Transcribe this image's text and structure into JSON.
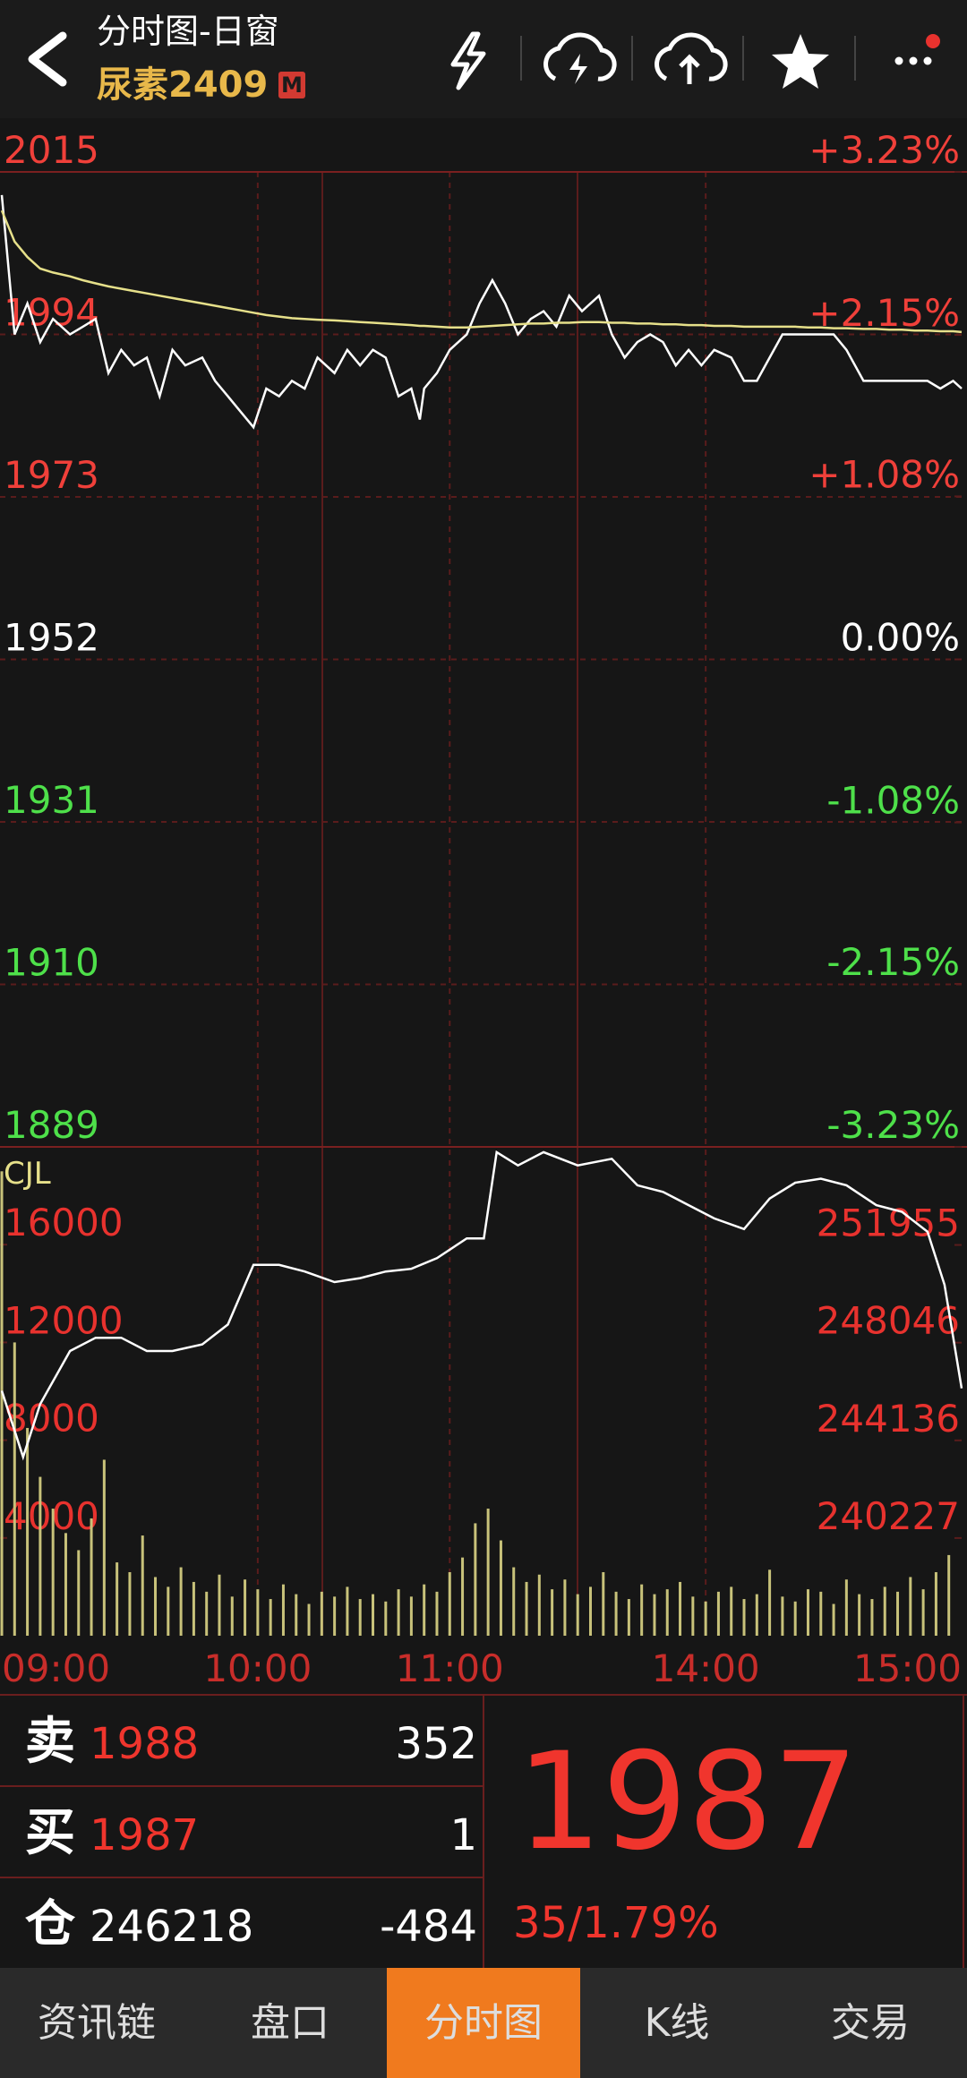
{
  "header": {
    "title": "分时图-日窗",
    "contract": "尿素2409",
    "badge": "M"
  },
  "chart_data": [
    {
      "type": "line",
      "up_color": "#f0403a",
      "flat_color": "#ffffff",
      "down_color": "#4ee04a",
      "grid": true,
      "x": [
        0,
        3,
        6,
        9,
        12,
        16,
        19,
        22,
        25,
        28,
        31,
        34,
        37,
        40,
        43,
        47,
        50,
        53,
        56,
        59,
        62,
        65,
        68,
        71,
        74,
        78,
        81,
        84,
        87,
        90,
        93,
        96,
        98,
        99,
        102,
        105,
        109,
        112,
        115,
        118,
        121,
        124,
        127,
        130,
        133,
        136,
        140,
        143,
        146,
        149,
        152,
        155,
        158,
        161,
        164,
        167,
        171,
        174,
        177,
        180,
        183,
        186,
        189,
        192,
        195,
        198,
        202,
        205,
        208,
        211,
        214,
        217,
        220,
        223,
        225
      ],
      "series": [
        {
          "color": "#ffffff",
          "values": [
            2012,
            1994,
            1998,
            1993,
            1996,
            1994,
            1995,
            1996,
            1989,
            1992,
            1990,
            1991,
            1986,
            1992,
            1990,
            1991,
            1988,
            1986,
            1984,
            1982,
            1987,
            1986,
            1988,
            1987,
            1991,
            1989,
            1992,
            1990,
            1992,
            1991,
            1986,
            1987,
            1983,
            1987,
            1989,
            1992,
            1994,
            1998,
            2001,
            1998,
            1994,
            1996,
            1997,
            1995,
            1999,
            1997,
            1999,
            1994,
            1991,
            1993,
            1994,
            1993,
            1990,
            1992,
            1990,
            1992,
            1991,
            1988,
            1988,
            1991,
            1994,
            1994,
            1994,
            1994,
            1994,
            1992,
            1988,
            1988,
            1988,
            1988,
            1988,
            1988,
            1987,
            1988,
            1987
          ]
        },
        {
          "color": "#e6e08a",
          "values": [
            2010,
            2006,
            2004,
            2002.5,
            2002,
            2001.5,
            2001,
            2000.6,
            2000.2,
            1999.9,
            1999.6,
            1999.3,
            1999,
            1998.7,
            1998.4,
            1998,
            1997.7,
            1997.4,
            1997.1,
            1996.8,
            1996.5,
            1996.3,
            1996.1,
            1996,
            1995.9,
            1995.8,
            1995.7,
            1995.6,
            1995.5,
            1995.4,
            1995.3,
            1995.2,
            1995.1,
            1995.1,
            1995,
            1994.9,
            1994.9,
            1995,
            1995.1,
            1995.2,
            1995.3,
            1995.4,
            1995.4,
            1995.5,
            1995.5,
            1995.6,
            1995.6,
            1995.5,
            1995.5,
            1995.4,
            1995.4,
            1995.3,
            1995.3,
            1995.2,
            1995.2,
            1995.1,
            1995.1,
            1995,
            1995,
            1995,
            1995,
            1995,
            1994.9,
            1994.9,
            1994.8,
            1994.8,
            1994.7,
            1994.7,
            1994.6,
            1994.6,
            1994.5,
            1994.5,
            1994.4,
            1994.4,
            1994.3
          ]
        }
      ],
      "ylim": [
        1889,
        2015
      ],
      "yticks": [
        2015,
        1994,
        1973,
        1952,
        1931,
        1910,
        1889
      ],
      "y2lim": [
        -3.23,
        3.23
      ],
      "y2ticks": [
        {
          "value": 3.23,
          "label": "+3.23%"
        },
        {
          "value": 2.15,
          "label": "+2.15%"
        },
        {
          "value": 1.08,
          "label": "+1.08%"
        },
        {
          "value": 0,
          "label": "0.00%"
        },
        {
          "value": -1.08,
          "label": "-1.08%"
        },
        {
          "value": -2.15,
          "label": "-2.15%"
        },
        {
          "value": -3.23,
          "label": "-3.23%"
        }
      ]
    },
    {
      "type": "bar",
      "title": "CJL",
      "title_color": "#e6e08a",
      "tick_color": "#e8322e",
      "x": [
        0,
        3,
        6,
        9,
        12,
        15,
        18,
        21,
        24,
        27,
        30,
        33,
        36,
        39,
        42,
        45,
        48,
        51,
        54,
        57,
        60,
        63,
        66,
        69,
        72,
        75,
        78,
        81,
        84,
        87,
        90,
        93,
        96,
        99,
        102,
        105,
        108,
        111,
        114,
        117,
        120,
        123,
        126,
        129,
        132,
        135,
        138,
        141,
        144,
        147,
        150,
        153,
        156,
        159,
        162,
        165,
        168,
        171,
        174,
        177,
        180,
        183,
        186,
        189,
        192,
        195,
        198,
        201,
        204,
        207,
        210,
        213,
        216,
        219,
        222
      ],
      "xlim": [
        0,
        225
      ],
      "xticks": [
        {
          "value": 0,
          "label": "09:00"
        },
        {
          "value": 60,
          "label": "10:00"
        },
        {
          "value": 105,
          "label": "11:00"
        },
        {
          "value": 165,
          "label": "14:00"
        },
        {
          "value": 225,
          "label": "15:00"
        }
      ],
      "series": [
        {
          "color": "#c8c27a",
          "values": [
            19000,
            12000,
            8500,
            6500,
            5200,
            4200,
            3500,
            4800,
            7200,
            3000,
            2600,
            4100,
            2400,
            2000,
            2800,
            2200,
            1800,
            2500,
            1600,
            2300,
            1900,
            1500,
            2100,
            1700,
            1300,
            1800,
            1600,
            2000,
            1500,
            1700,
            1400,
            1900,
            1600,
            2100,
            1800,
            2600,
            3200,
            4600,
            5200,
            3900,
            2800,
            2200,
            2500,
            1900,
            2300,
            1700,
            2000,
            2600,
            1800,
            1500,
            2100,
            1700,
            1900,
            2200,
            1600,
            1400,
            1800,
            2000,
            1500,
            1700,
            2700,
            1600,
            1400,
            1900,
            1800,
            1300,
            2300,
            1700,
            1500,
            2000,
            1800,
            2400,
            1900,
            2600,
            3300
          ]
        },
        {
          "color": "#ffffff",
          "axis": "y2",
          "x": [
            0,
            5,
            9,
            16,
            22,
            28,
            34,
            40,
            47,
            53,
            59,
            65,
            71,
            78,
            84,
            90,
            96,
            102,
            109,
            113,
            116,
            121,
            127,
            135,
            143,
            149,
            155,
            161,
            167,
            174,
            180,
            186,
            192,
            198,
            205,
            211,
            217,
            221,
            225
          ],
          "values": [
            246121,
            243469,
            245590,
            247712,
            248242,
            248242,
            247712,
            247712,
            247977,
            248773,
            251159,
            251159,
            250894,
            250470,
            250629,
            250894,
            251000,
            251425,
            252220,
            252220,
            255668,
            255137,
            255668,
            255137,
            255403,
            254342,
            254077,
            253546,
            253016,
            252591,
            253811,
            254448,
            254607,
            254342,
            253546,
            253281,
            252485,
            250364,
            246218
          ]
        }
      ],
      "ylim": [
        0,
        20000
      ],
      "yticks": [
        4000,
        8000,
        12000,
        16000
      ],
      "y2lim": [
        236318,
        255880
      ],
      "y2ticks": [
        240227,
        244136,
        248046,
        251955
      ]
    }
  ],
  "quote": {
    "rows": [
      {
        "label": "卖",
        "price": 1988,
        "qty": 352
      },
      {
        "label": "买",
        "price": 1987,
        "qty": 1
      },
      {
        "label": "仓",
        "price": 246218,
        "qty": -484
      }
    ],
    "last": 1987,
    "change": "35/1.79%"
  },
  "tabs": {
    "items": [
      "资讯链",
      "盘口",
      "分时图",
      "K线",
      "交易"
    ],
    "active": 2,
    "active_color": "#f07a1e"
  }
}
